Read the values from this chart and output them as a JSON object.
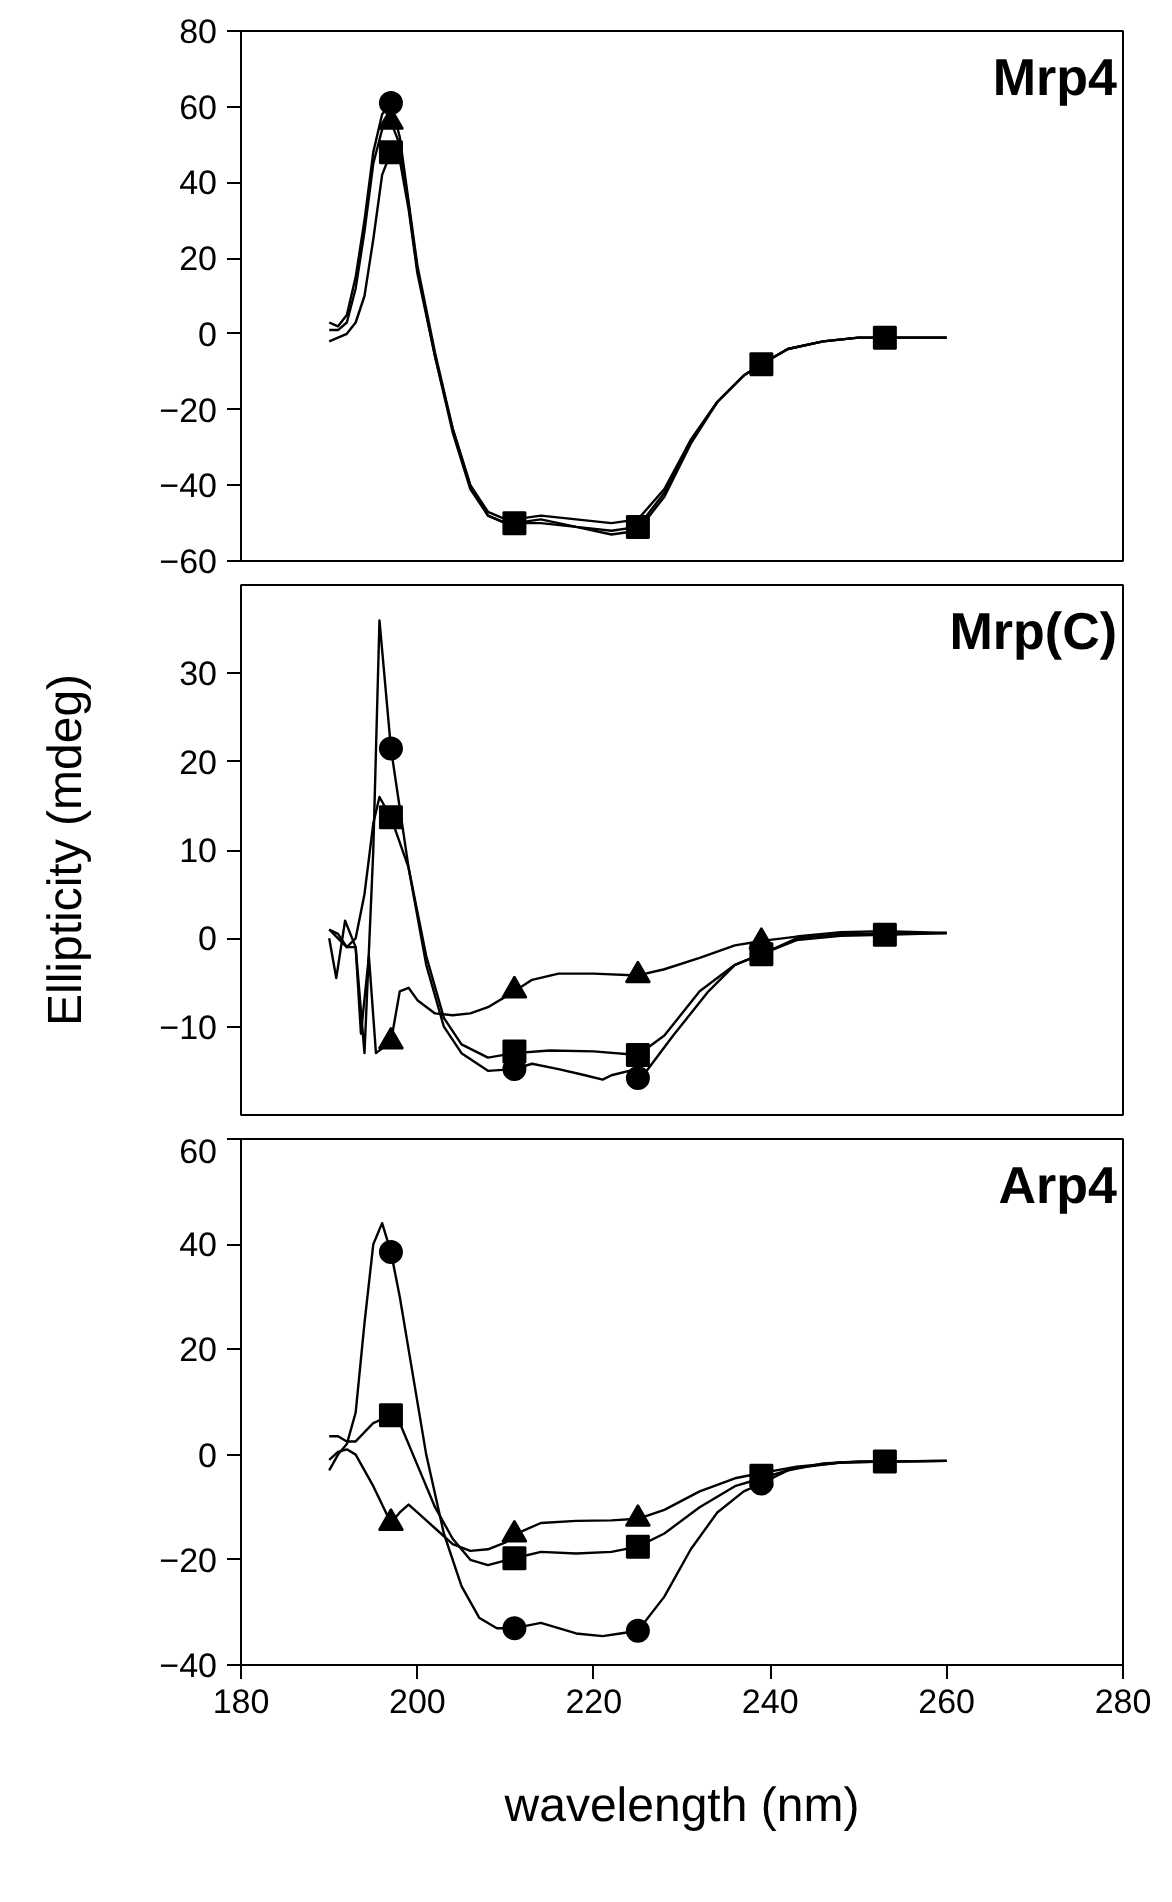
{
  "chart_data": [
    {
      "type": "line",
      "title": "Mrp4",
      "xlim": [
        180,
        280
      ],
      "ylim": [
        -60,
        80
      ],
      "xticks": [
        180,
        200,
        220,
        240,
        260,
        280
      ],
      "yticks": [
        -60,
        -40,
        -20,
        0,
        20,
        40,
        60,
        80
      ],
      "tick_labels": "y",
      "series": [
        {
          "color": "#000000",
          "marker": "none",
          "x": [
            190,
            191,
            192,
            193,
            194,
            195,
            196,
            197,
            198,
            199,
            200,
            202,
            204,
            206,
            208,
            210,
            211,
            214,
            218,
            222,
            225,
            228,
            231,
            234,
            237,
            239,
            242,
            246,
            250,
            253,
            256,
            260
          ],
          "values": [
            3,
            2,
            5,
            15,
            30,
            48,
            58,
            61,
            52,
            35,
            18,
            -5,
            -25,
            -40,
            -48,
            -50,
            -50,
            -49,
            -51,
            -52,
            -51,
            -42,
            -28,
            -18,
            -11,
            -8,
            -4,
            -2,
            -1,
            -1,
            -1,
            -1
          ]
        },
        {
          "color": "#000000",
          "marker": "none",
          "x": [
            190,
            191,
            192,
            193,
            194,
            195,
            196,
            197,
            198,
            199,
            200,
            202,
            204,
            206,
            208,
            210,
            211,
            214,
            218,
            222,
            225,
            228,
            231,
            234,
            237,
            239,
            242,
            246,
            250,
            253,
            256,
            260
          ],
          "values": [
            1,
            1,
            3,
            12,
            27,
            45,
            54,
            56,
            50,
            34,
            17,
            -6,
            -26,
            -41,
            -48,
            -50,
            -50,
            -50,
            -51,
            -53,
            -52,
            -43,
            -29,
            -18,
            -11,
            -8,
            -4,
            -2,
            -1,
            -1,
            -1,
            -1
          ]
        },
        {
          "color": "#000000",
          "marker": "none",
          "x": [
            190,
            191,
            192,
            193,
            194,
            195,
            196,
            197,
            198,
            199,
            200,
            202,
            204,
            206,
            208,
            210,
            211,
            214,
            218,
            222,
            225,
            228,
            231,
            234,
            237,
            239,
            242,
            246,
            250,
            253,
            256,
            260
          ],
          "values": [
            -2,
            -1,
            0,
            3,
            10,
            25,
            42,
            48,
            46,
            33,
            16,
            -6,
            -25,
            -40,
            -47,
            -49,
            -49,
            -48,
            -49,
            -50,
            -49,
            -41,
            -28,
            -18,
            -11,
            -8,
            -4,
            -2,
            -1,
            -1,
            -1,
            -1
          ]
        },
        {
          "type": "scatter",
          "color": "#000000",
          "marker": "circle",
          "x": [
            197
          ],
          "values": [
            61
          ]
        },
        {
          "type": "scatter",
          "color": "#000000",
          "marker": "triangle",
          "x": [
            197
          ],
          "values": [
            56
          ]
        },
        {
          "type": "scatter",
          "color": "#000000",
          "marker": "square",
          "x": [
            197,
            211,
            225,
            239,
            253
          ],
          "values": [
            48,
            -50,
            -51,
            -8,
            -1
          ]
        }
      ]
    },
    {
      "type": "line",
      "title": "Mrp(C)",
      "ylabel": "Ellipticity (mdeg)",
      "xlim": [
        180,
        280
      ],
      "ylim": [
        -20,
        40
      ],
      "xticks": [
        180,
        200,
        220,
        240,
        260,
        280
      ],
      "yticks": [
        -10,
        0,
        10,
        20,
        30
      ],
      "tick_labels": "y",
      "series": [
        {
          "color": "#000000",
          "marker": "none",
          "x": [
            190,
            191,
            192,
            193,
            194,
            195,
            195.7,
            197,
            199,
            201,
            203,
            205,
            208,
            211,
            213,
            216,
            219,
            221,
            222,
            224,
            225,
            226,
            229,
            233,
            236,
            239,
            243,
            248,
            253,
            260
          ],
          "values": [
            1,
            0,
            -1,
            -1,
            -13,
            10,
            36,
            21.5,
            8,
            -3,
            -10,
            -13,
            -15,
            -14.8,
            -14.2,
            -14.8,
            -15.5,
            -16,
            -15.5,
            -15,
            -15.8,
            -15,
            -11,
            -6,
            -3,
            -1.8,
            0,
            0.5,
            0.5,
            0.6
          ]
        },
        {
          "color": "#000000",
          "marker": "none",
          "x": [
            190,
            191,
            192,
            193,
            194,
            195,
            195.7,
            197,
            199,
            201,
            203,
            205,
            208,
            211,
            215,
            220,
            225,
            228,
            232,
            236,
            239,
            243,
            248,
            253,
            260
          ],
          "values": [
            1,
            0.5,
            -1,
            0,
            5,
            13,
            16,
            13.7,
            8,
            -2,
            -9,
            -12,
            -13.5,
            -13,
            -12.7,
            -12.8,
            -13.2,
            -11,
            -6,
            -3,
            -1.8,
            -0.2,
            0.3,
            0.4,
            0.6
          ]
        },
        {
          "color": "#000000",
          "marker": "none",
          "x": [
            190,
            190.8,
            191.8,
            193,
            193.6,
            194.5,
            195.3,
            197,
            198,
            199,
            200,
            202,
            204,
            206,
            208,
            211,
            213,
            216,
            220,
            225,
            228,
            232,
            236,
            239,
            243,
            248,
            253,
            260
          ],
          "values": [
            0,
            -4.5,
            2,
            -1,
            -10.8,
            -2,
            -13,
            -11.7,
            -6,
            -5.6,
            -7,
            -8.5,
            -8.7,
            -8.5,
            -7.8,
            -6,
            -4.7,
            -4,
            -4,
            -4.2,
            -3.5,
            -2.2,
            -0.8,
            -0.3,
            0.2,
            0.7,
            0.8,
            0.6
          ]
        },
        {
          "type": "scatter",
          "color": "#000000",
          "marker": "circle",
          "x": [
            197,
            211,
            225
          ],
          "values": [
            21.5,
            -14.8,
            -15.8
          ]
        },
        {
          "type": "scatter",
          "color": "#000000",
          "marker": "square",
          "x": [
            197,
            211,
            225,
            239,
            253
          ],
          "values": [
            13.7,
            -12.8,
            -13.2,
            -1.8,
            0.4
          ]
        },
        {
          "type": "scatter",
          "color": "#000000",
          "marker": "triangle",
          "x": [
            197,
            211,
            225,
            239
          ],
          "values": [
            -11.7,
            -5.9,
            -4.2,
            -0.4
          ]
        }
      ]
    },
    {
      "type": "line",
      "title": "Arp4",
      "xlabel": "wavelength (nm)",
      "xlim": [
        180,
        280
      ],
      "ylim": [
        -40,
        60
      ],
      "xticks": [
        180,
        200,
        220,
        240,
        260,
        280
      ],
      "yticks": [
        -40,
        -20,
        0,
        20,
        40,
        60
      ],
      "series": [
        {
          "color": "#000000",
          "marker": "none",
          "x": [
            190,
            191,
            192,
            193,
            194,
            195,
            196,
            197,
            198,
            199,
            201,
            203,
            205,
            207,
            209,
            211,
            214,
            218,
            221,
            223,
            225,
            228,
            231,
            234,
            237,
            239,
            242,
            246,
            250,
            253,
            260
          ],
          "values": [
            -3,
            0,
            2,
            8,
            25,
            40,
            44,
            38.5,
            30,
            20,
            0,
            -15,
            -25,
            -31,
            -33,
            -33,
            -32,
            -34,
            -34.5,
            -34,
            -33.5,
            -27,
            -18,
            -11,
            -7,
            -5.5,
            -3,
            -1.7,
            -1.3,
            -1.3,
            -1.2
          ]
        },
        {
          "color": "#000000",
          "marker": "none",
          "x": [
            190,
            191,
            192,
            193,
            195,
            197,
            198,
            200,
            202,
            204,
            206,
            208,
            211,
            214,
            218,
            222,
            225,
            228,
            232,
            236,
            239,
            243,
            248,
            253,
            260
          ],
          "values": [
            3.5,
            3.5,
            2.5,
            2.5,
            6,
            7.5,
            6,
            -2,
            -10,
            -16,
            -20,
            -21,
            -19.7,
            -18.5,
            -18.8,
            -18.5,
            -17.5,
            -15,
            -10,
            -6,
            -4.5,
            -2.5,
            -1.5,
            -1.3,
            -1.2
          ]
        },
        {
          "color": "#000000",
          "marker": "none",
          "x": [
            190,
            191,
            192,
            193,
            195,
            197,
            198,
            199,
            200,
            202,
            204,
            206,
            208,
            210,
            211,
            214,
            218,
            222,
            225,
            228,
            232,
            236,
            239,
            243,
            248,
            253,
            260
          ],
          "values": [
            -1,
            0.5,
            1,
            0,
            -6,
            -13,
            -11,
            -9.5,
            -11,
            -14,
            -17,
            -18.3,
            -18,
            -16.7,
            -15.2,
            -13,
            -12.6,
            -12.5,
            -12.2,
            -10.5,
            -7,
            -4.5,
            -3.5,
            -2.3,
            -1.5,
            -1.3,
            -1.2
          ]
        },
        {
          "type": "scatter",
          "color": "#000000",
          "marker": "square",
          "x": [
            197,
            211,
            225,
            239,
            253
          ],
          "values": [
            7.5,
            -19.7,
            -17.5,
            -4,
            -1.3
          ]
        },
        {
          "type": "scatter",
          "color": "#000000",
          "marker": "circle",
          "x": [
            197,
            211,
            225,
            239
          ],
          "values": [
            38.5,
            -33,
            -33.5,
            -5.5
          ]
        },
        {
          "type": "scatter",
          "color": "#000000",
          "marker": "triangle",
          "x": [
            197,
            211,
            225
          ],
          "values": [
            -13,
            -15.2,
            -12.2
          ]
        }
      ]
    }
  ]
}
